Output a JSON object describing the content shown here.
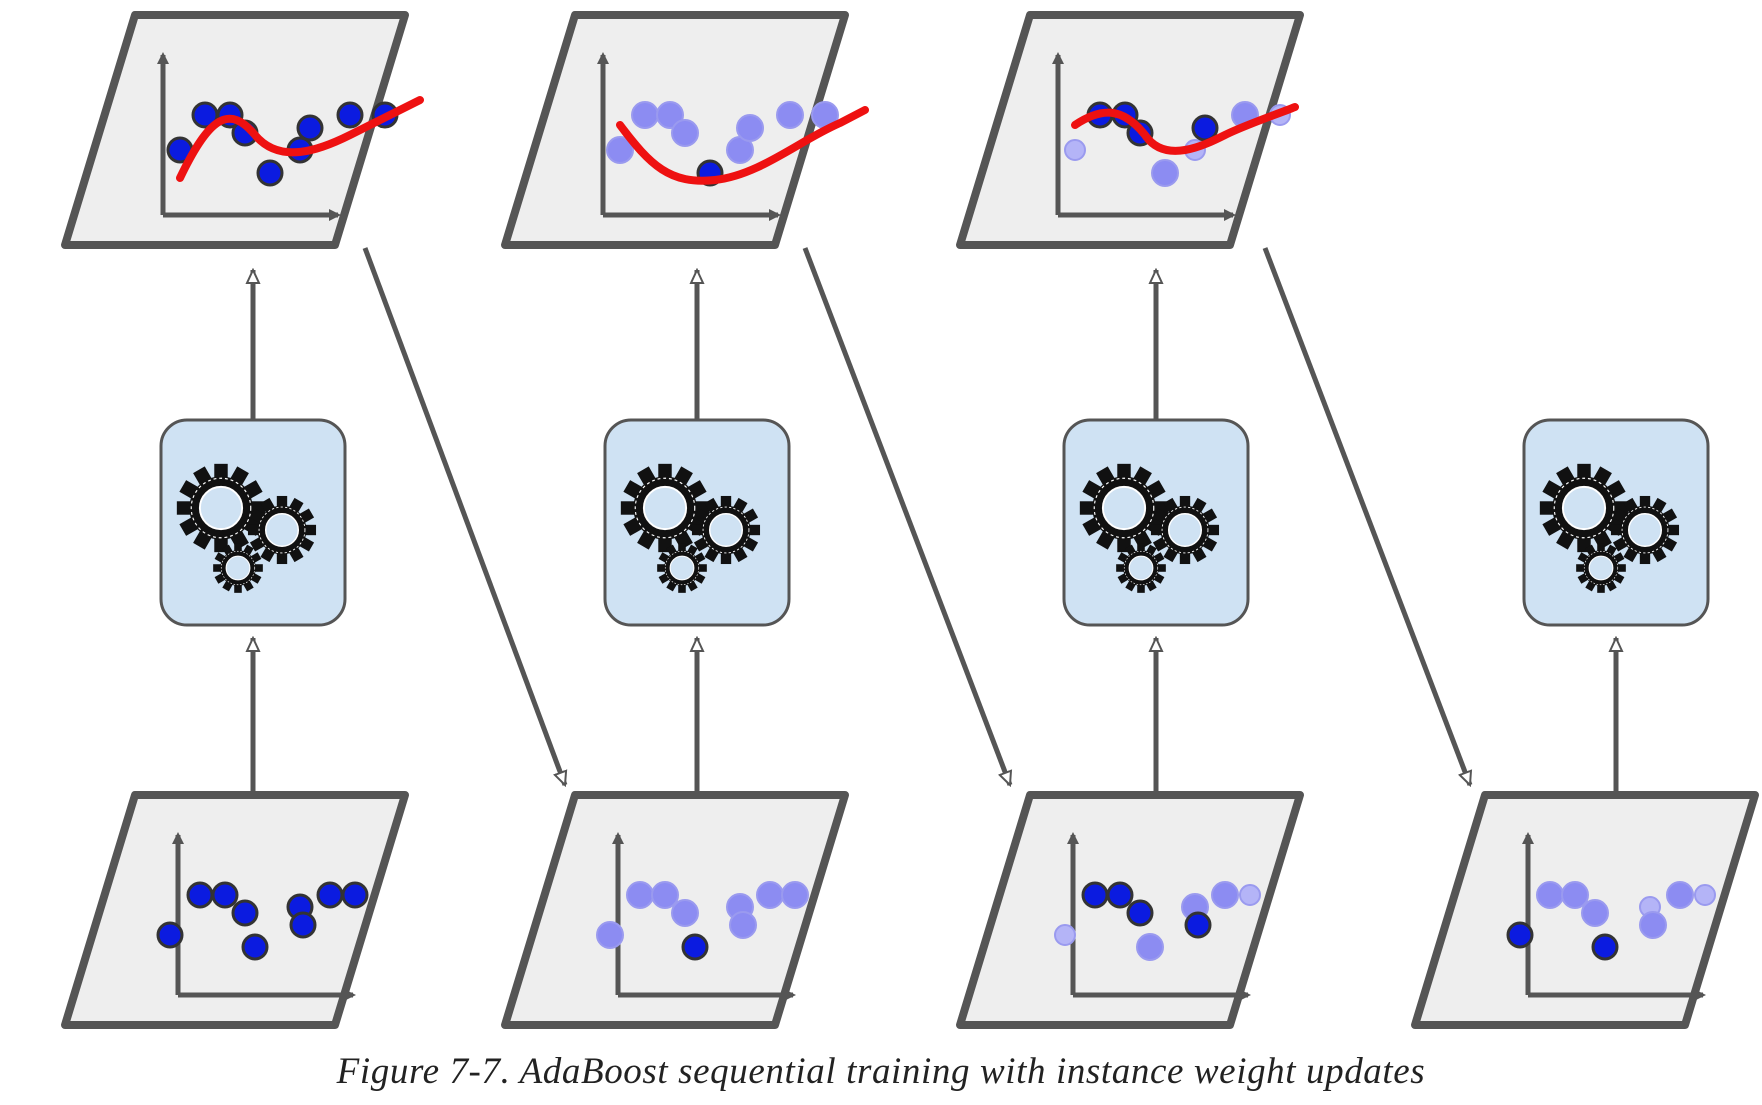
{
  "caption": "Figure 7-7. AdaBoost sequential training with instance weight updates",
  "colors": {
    "panel_fill": "#eeeeee",
    "panel_stroke": "#555555",
    "predictor_fill": "#cfe2f3",
    "curve": "#ee1111",
    "point_dark": "#0b1be0",
    "point_light": "#8c8cf2",
    "point_faint": "#b4b4f7"
  },
  "predictors": [
    {
      "name": "predictor-1",
      "icon": "gears-icon"
    },
    {
      "name": "predictor-2",
      "icon": "gears-icon"
    },
    {
      "name": "predictor-3",
      "icon": "gears-icon"
    },
    {
      "name": "predictor-4",
      "icon": "gears-icon"
    }
  ],
  "stages": [
    {
      "training_set": "weighted-training-set-1",
      "prediction": "predictions-1",
      "curve_shape": "wavy-fit"
    },
    {
      "training_set": "weighted-training-set-2",
      "prediction": "predictions-2",
      "curve_shape": "u-shaped-fit"
    },
    {
      "training_set": "weighted-training-set-3",
      "prediction": "predictions-3",
      "curve_shape": "wavy-fit"
    },
    {
      "training_set": "weighted-training-set-4"
    }
  ]
}
